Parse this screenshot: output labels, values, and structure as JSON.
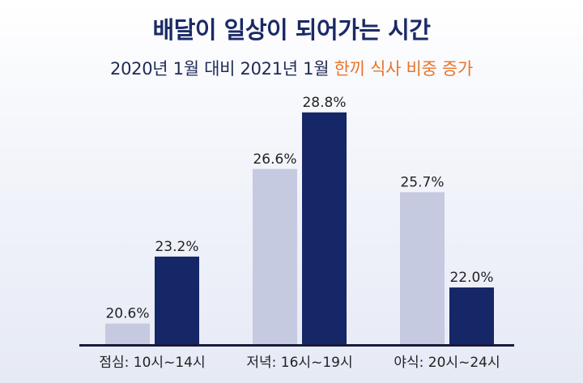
{
  "chart_data": {
    "type": "bar",
    "title": "배달이 일상이 되어가는 시간",
    "subtitle_main": "2020년 1월 대비 2021년 1월",
    "subtitle_highlight": "한끼 식사 비중 증가",
    "categories": [
      "점심: 10시~14시",
      "저녁: 16시~19시",
      "야식: 20시~24시"
    ],
    "series": [
      {
        "values": [
          20.6,
          26.6,
          25.7
        ],
        "labels": [
          "20.6%",
          "26.6%",
          "25.7%"
        ],
        "color": "#c5cae0"
      },
      {
        "values": [
          23.2,
          28.8,
          22.0
        ],
        "labels": [
          "23.2%",
          "28.8%",
          "22.0%"
        ],
        "color": "#152766"
      }
    ],
    "unit": "%",
    "ylim": [
      0,
      30
    ],
    "grid": false,
    "legend": "none"
  },
  "colors": {
    "title": "#1b2a66",
    "highlight": "#e8742a",
    "axis": "#1a1a3a"
  }
}
